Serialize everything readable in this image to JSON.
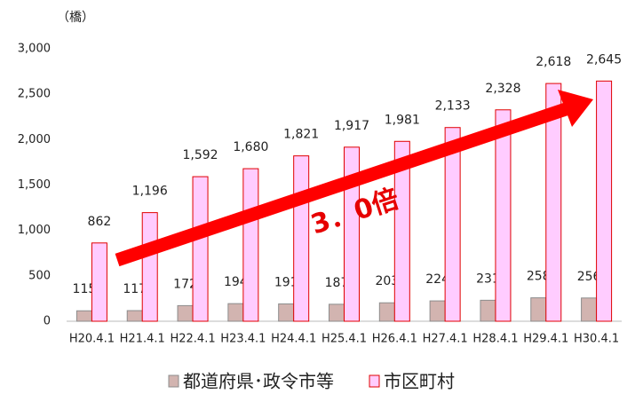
{
  "chart_data": {
    "type": "bar",
    "y_unit": "（橋）",
    "annotation": "3．0倍",
    "categories": [
      "H20.4.1",
      "H21.4.1",
      "H22.4.1",
      "H23.4.1",
      "H24.4.1",
      "H25.4.1",
      "H26.4.1",
      "H27.4.1",
      "H28.4.1",
      "H29.4.1",
      "H30.4.1"
    ],
    "series": [
      {
        "name": "都道府県･政令市等",
        "color": "#d2b4b0",
        "border": "#8c8c8c",
        "values": [
          115,
          117,
          172,
          194,
          191,
          187,
          203,
          224,
          231,
          258,
          256
        ]
      },
      {
        "name": "市区町村",
        "color": "#ffccff",
        "border": "#e00000",
        "values": [
          862,
          1196,
          1592,
          1680,
          1821,
          1917,
          1981,
          2133,
          2328,
          2618,
          2645
        ],
        "value_labels": [
          "862",
          "1,196",
          "1,592",
          "1,680",
          "1,821",
          "1,917",
          "1,981",
          "2,133",
          "2,328",
          "2,618",
          "2,645"
        ]
      }
    ],
    "ylim": [
      0,
      3000
    ],
    "yticks": [
      0,
      500,
      {
        "value": 1000,
        "label": "1,000"
      },
      {
        "value": 1500,
        "label": "1,500"
      },
      {
        "value": 2000,
        "label": "2,000"
      },
      {
        "value": 2500,
        "label": "2,500"
      },
      {
        "value": 3000,
        "label": "3,000"
      }
    ]
  }
}
